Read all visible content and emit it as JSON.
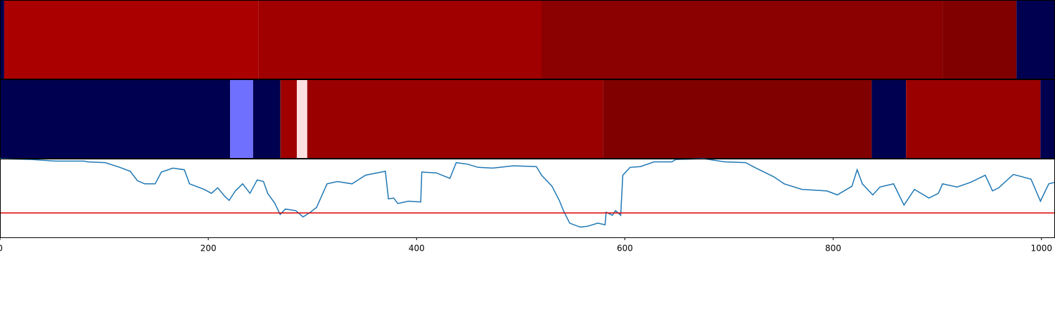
{
  "chart_data": [
    {
      "type": "segments",
      "xlim": [
        0,
        1013
      ],
      "segments": [
        {
          "start": 0,
          "end": 4,
          "color": "#000050"
        },
        {
          "start": 4,
          "end": 248,
          "color": "#aa0000"
        },
        {
          "start": 248,
          "end": 520,
          "color": "#a00000"
        },
        {
          "start": 520,
          "end": 905,
          "color": "#8b0000"
        },
        {
          "start": 905,
          "end": 976,
          "color": "#800000"
        },
        {
          "start": 976,
          "end": 1013,
          "color": "#000050"
        }
      ]
    },
    {
      "type": "segments",
      "xlim": [
        0,
        1013
      ],
      "segments": [
        {
          "start": 0,
          "end": 221,
          "color": "#000050"
        },
        {
          "start": 221,
          "end": 243,
          "color": "#7070ff"
        },
        {
          "start": 243,
          "end": 269,
          "color": "#000050"
        },
        {
          "start": 269,
          "end": 270,
          "color": "#600000"
        },
        {
          "start": 270,
          "end": 285,
          "color": "#a00000"
        },
        {
          "start": 285,
          "end": 295,
          "color": "#ffe0e0"
        },
        {
          "start": 295,
          "end": 579,
          "color": "#9a0000"
        },
        {
          "start": 579,
          "end": 837,
          "color": "#800000"
        },
        {
          "start": 837,
          "end": 870,
          "color": "#000050"
        },
        {
          "start": 870,
          "end": 999,
          "color": "#9a0000"
        },
        {
          "start": 999,
          "end": 1013,
          "color": "#000050"
        }
      ]
    },
    {
      "type": "line",
      "xlim": [
        0,
        1013
      ],
      "ylim": [
        0,
        1
      ],
      "color": "#1f77b4",
      "xticks": [
        0,
        200,
        400,
        600,
        800,
        1000
      ],
      "threshold": {
        "value": 0.31,
        "color": "#dd0000"
      },
      "x": [
        0,
        30,
        53,
        81,
        84,
        101,
        115,
        125,
        132,
        139,
        149,
        155,
        166,
        177,
        182,
        196,
        203,
        209,
        216,
        220,
        226,
        233,
        240,
        247,
        253,
        257,
        264,
        269,
        274,
        284,
        291,
        297,
        304,
        314,
        324,
        338,
        351,
        370,
        373,
        378,
        382,
        392,
        404,
        405,
        419,
        432,
        438,
        449,
        459,
        473,
        493,
        515,
        520,
        530,
        537,
        541,
        547,
        557,
        564,
        574,
        581,
        582,
        588,
        591,
        596,
        598,
        605,
        615,
        628,
        645,
        649,
        676,
        696,
        716,
        726,
        743,
        753,
        770,
        794,
        804,
        818,
        823,
        828,
        838,
        845,
        858,
        868,
        878,
        892,
        901,
        905,
        919,
        932,
        946,
        953,
        959,
        973,
        990,
        999,
        1007,
        1013
      ],
      "values": [
        1.0,
        0.99,
        0.97,
        0.97,
        0.96,
        0.95,
        0.89,
        0.84,
        0.72,
        0.68,
        0.68,
        0.83,
        0.88,
        0.86,
        0.68,
        0.61,
        0.56,
        0.63,
        0.52,
        0.47,
        0.59,
        0.68,
        0.56,
        0.73,
        0.71,
        0.56,
        0.43,
        0.29,
        0.36,
        0.34,
        0.26,
        0.31,
        0.38,
        0.68,
        0.71,
        0.68,
        0.79,
        0.84,
        0.49,
        0.5,
        0.43,
        0.46,
        0.45,
        0.83,
        0.82,
        0.75,
        0.95,
        0.93,
        0.89,
        0.88,
        0.91,
        0.9,
        0.79,
        0.65,
        0.47,
        0.34,
        0.18,
        0.13,
        0.14,
        0.18,
        0.16,
        0.32,
        0.28,
        0.34,
        0.28,
        0.79,
        0.89,
        0.9,
        0.96,
        0.96,
        0.99,
        1.0,
        0.96,
        0.95,
        0.88,
        0.77,
        0.68,
        0.61,
        0.59,
        0.54,
        0.65,
        0.86,
        0.68,
        0.54,
        0.64,
        0.68,
        0.41,
        0.61,
        0.5,
        0.56,
        0.68,
        0.64,
        0.7,
        0.79,
        0.59,
        0.63,
        0.8,
        0.74,
        0.46,
        0.68,
        0.7
      ]
    }
  ]
}
